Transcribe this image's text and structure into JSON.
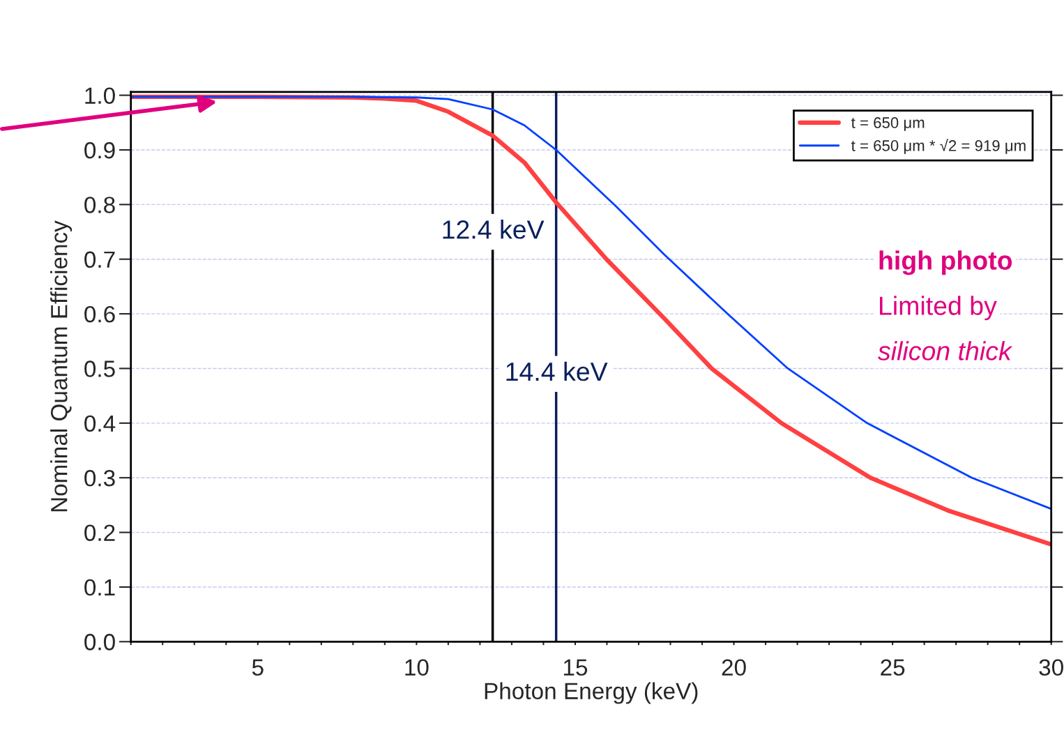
{
  "chart_data": {
    "type": "line",
    "xlabel": "Photon Energy (keV)",
    "ylabel": "Nominal Quantum Efficiency",
    "series": [
      {
        "name": "t = 650 μm",
        "color": "#ff4040",
        "x": [
          1,
          5,
          8,
          9,
          10,
          11,
          12.4,
          13.4,
          14.4,
          16,
          17.8,
          19.3,
          21.5,
          24.3,
          26.8,
          30
        ],
        "values": [
          0.997,
          0.997,
          0.996,
          0.994,
          0.99,
          0.97,
          0.926,
          0.877,
          0.804,
          0.699,
          0.592,
          0.5,
          0.4,
          0.3,
          0.239,
          0.178
        ]
      },
      {
        "name": "t = 650 μm * √2 = 919 μm",
        "color": "#0040ff",
        "x": [
          1,
          8,
          10,
          11,
          12.4,
          13.4,
          14.4,
          16.3,
          17.8,
          19.8,
          21.7,
          24.2,
          27.5,
          30
        ],
        "values": [
          0.997,
          0.997,
          0.996,
          0.993,
          0.974,
          0.945,
          0.9,
          0.796,
          0.709,
          0.6,
          0.5,
          0.4,
          0.3,
          0.243
        ]
      }
    ],
    "xlim": [
      1,
      30
    ],
    "xticks": [
      {
        "value": 1,
        "label": null
      },
      {
        "value": 2,
        "label": null
      },
      {
        "value": 3,
        "label": null
      },
      {
        "value": 4,
        "label": null
      },
      5,
      {
        "value": 6,
        "label": null
      },
      {
        "value": 7,
        "label": null
      },
      {
        "value": 8,
        "label": null
      },
      {
        "value": 9,
        "label": null
      },
      10,
      {
        "value": 11,
        "label": null
      },
      {
        "value": 12,
        "label": null
      },
      {
        "value": 13,
        "label": null
      },
      {
        "value": 14,
        "label": null
      },
      15,
      {
        "value": 16,
        "label": null
      },
      {
        "value": 17,
        "label": null
      },
      {
        "value": 18,
        "label": null
      },
      {
        "value": 19,
        "label": null
      },
      20,
      {
        "value": 21,
        "label": null
      },
      {
        "value": 22,
        "label": null
      },
      {
        "value": 23,
        "label": null
      },
      {
        "value": 24,
        "label": null
      },
      25,
      {
        "value": 26,
        "label": null
      },
      {
        "value": 27,
        "label": null
      },
      {
        "value": 28,
        "label": null
      },
      {
        "value": 29,
        "label": null
      },
      30
    ],
    "ylim": [
      0,
      1.006
    ],
    "yticks": [
      {
        "value": 0,
        "label": "0.0"
      },
      0.1,
      0.2,
      0.3,
      0.4,
      0.5,
      0.6,
      0.7,
      0.8,
      0.9,
      {
        "value": 1,
        "label": "1.0"
      }
    ],
    "grid": "y",
    "legend": "top right",
    "marker": "none",
    "line_style": "solid",
    "ref_lines": [
      {
        "axis": "x",
        "value": 12.4,
        "label": "12.4 keV",
        "color": "#000000"
      },
      {
        "axis": "x",
        "value": 14.4,
        "label": "14.4 keV",
        "color": "#0a1f5c"
      }
    ],
    "annotations": [
      "high photo",
      "Limited by",
      "silicon thick"
    ]
  }
}
